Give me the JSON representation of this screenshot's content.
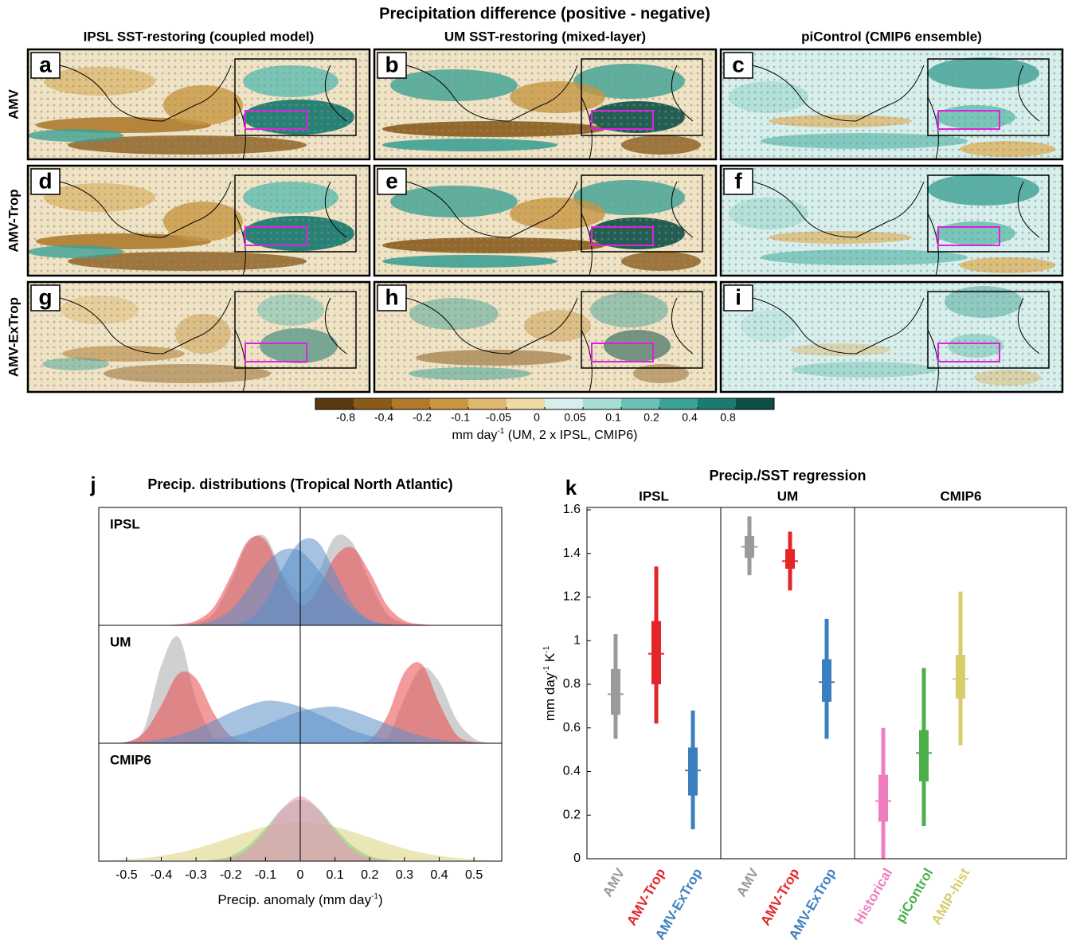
{
  "maps": {
    "title": "Precipitation difference (positive - negative)",
    "column_titles": [
      "IPSL SST-restoring (coupled model)",
      "UM SST-restoring (mixed-layer)",
      "piControl (CMIP6 ensemble)"
    ],
    "row_labels": [
      "AMV",
      "AMV-Trop",
      "AMV-ExTrop"
    ],
    "panel_letters": [
      "a",
      "b",
      "c",
      "d",
      "e",
      "f",
      "g",
      "h",
      "i"
    ],
    "colorbar": {
      "colors": [
        "#5a3a0e",
        "#8a5a1a",
        "#b07a2a",
        "#c9963f",
        "#ddb86e",
        "#efd9a6",
        "#d6efec",
        "#a8ddd5",
        "#6cc1b4",
        "#3aa195",
        "#1b7b70",
        "#0b4f45"
      ],
      "ticks": [
        -0.8,
        -0.4,
        -0.2,
        -0.1,
        -0.05,
        0,
        0.05,
        0.1,
        0.2,
        0.4,
        0.8
      ],
      "label": [
        "mm day",
        "-1",
        " (UM, 2 x IPSL, CMIP6)"
      ]
    }
  },
  "chart_data": [
    {
      "type": "density",
      "panel_letter": "j",
      "title": "Precip. distributions (Tropical North Atlantic)",
      "xlabel": [
        "Precip. anomaly (mm day",
        "-1",
        ")"
      ],
      "xlim": [
        -0.58,
        0.58
      ],
      "xticks": [
        -0.5,
        -0.4,
        -0.3,
        -0.2,
        -0.1,
        0,
        0.1,
        0.2,
        0.3,
        0.4,
        0.5
      ],
      "x": [
        -0.55,
        -0.5,
        -0.45,
        -0.4,
        -0.35,
        -0.3,
        -0.25,
        -0.2,
        -0.15,
        -0.1,
        -0.05,
        0,
        0.05,
        0.1,
        0.15,
        0.2,
        0.25,
        0.3,
        0.35,
        0.4,
        0.45,
        0.5,
        0.55
      ],
      "panels": [
        {
          "label": "IPSL",
          "series": [
            {
              "color": "#a9a9a9",
              "values": [
                0,
                0,
                0,
                0,
                0,
                0.02,
                0.1,
                0.37,
                0.7,
                0.75,
                0.44,
                0.28,
                0.44,
                0.75,
                0.7,
                0.37,
                0.1,
                0.02,
                0,
                0,
                0,
                0,
                0
              ]
            },
            {
              "color": "#e8474a",
              "values": [
                0,
                0,
                0,
                0,
                0.01,
                0.04,
                0.15,
                0.42,
                0.72,
                0.72,
                0.4,
                0.17,
                0.3,
                0.58,
                0.66,
                0.45,
                0.17,
                0.04,
                0.01,
                0,
                0,
                0,
                0
              ]
            },
            {
              "color": "#5b8fc9",
              "values": [
                0,
                0,
                0,
                0,
                0,
                0,
                0,
                0.01,
                0.05,
                0.2,
                0.49,
                0.71,
                0.71,
                0.45,
                0.18,
                0.05,
                0.01,
                0,
                0,
                0,
                0,
                0,
                0
              ]
            },
            {
              "color": "#5b8fc9",
              "values": [
                0,
                0,
                0,
                0,
                0,
                0.01,
                0.04,
                0.13,
                0.31,
                0.52,
                0.64,
                0.63,
                0.48,
                0.28,
                0.13,
                0.04,
                0.01,
                0,
                0,
                0,
                0,
                0,
                0
              ]
            }
          ]
        },
        {
          "label": "UM",
          "series": [
            {
              "color": "#a9a9a9",
              "values": [
                0,
                0.01,
                0.12,
                0.66,
                0.9,
                0.37,
                0.05,
                0,
                0,
                0,
                0,
                0,
                0,
                0,
                0,
                0,
                0.04,
                0.38,
                0.64,
                0.52,
                0.2,
                0.04,
                0
              ]
            },
            {
              "color": "#e8474a",
              "values": [
                0,
                0.01,
                0.09,
                0.32,
                0.59,
                0.55,
                0.26,
                0.06,
                0.01,
                0,
                0,
                0,
                0,
                0,
                0,
                0.03,
                0.23,
                0.6,
                0.67,
                0.34,
                0.07,
                0.01,
                0
              ]
            },
            {
              "color": "#5b8fc9",
              "values": [
                0.003,
                0.007,
                0.017,
                0.037,
                0.071,
                0.12,
                0.19,
                0.26,
                0.32,
                0.36,
                0.35,
                0.31,
                0.25,
                0.18,
                0.11,
                0.063,
                0.032,
                0.015,
                0.006,
                0.002,
                0,
                0,
                0
              ]
            },
            {
              "color": "#5b8fc9",
              "values": [
                0,
                0,
                0,
                0.002,
                0.005,
                0.013,
                0.028,
                0.054,
                0.095,
                0.155,
                0.215,
                0.27,
                0.3,
                0.31,
                0.275,
                0.22,
                0.165,
                0.105,
                0.061,
                0.032,
                0.015,
                0.006,
                0.003
              ]
            }
          ]
        },
        {
          "label": "CMIP6",
          "series": [
            {
              "color": "#d9d27a",
              "values": [
                0.008,
                0.015,
                0.026,
                0.045,
                0.071,
                0.107,
                0.151,
                0.2,
                0.249,
                0.291,
                0.32,
                0.33,
                0.32,
                0.291,
                0.249,
                0.2,
                0.151,
                0.107,
                0.071,
                0.045,
                0.026,
                0.015,
                0.008
              ]
            },
            {
              "color": "#7fc97f",
              "values": [
                0,
                0,
                0,
                0,
                0,
                0.002,
                0.011,
                0.044,
                0.13,
                0.28,
                0.45,
                0.52,
                0.45,
                0.28,
                0.13,
                0.044,
                0.011,
                0.002,
                0,
                0,
                0,
                0,
                0
              ]
            },
            {
              "color": "#f08fc0",
              "values": [
                0,
                0,
                0,
                0,
                0,
                0,
                0.004,
                0.024,
                0.095,
                0.25,
                0.45,
                0.55,
                0.45,
                0.25,
                0.095,
                0.024,
                0.004,
                0,
                0,
                0,
                0,
                0,
                0
              ]
            }
          ]
        }
      ]
    },
    {
      "type": "box",
      "panel_letter": "k",
      "title": "Precip./SST regression",
      "ylabel": [
        "mm day",
        "-1",
        " K",
        "-1"
      ],
      "ylim": [
        0,
        1.6
      ],
      "yticks": [
        0,
        0.2,
        0.4,
        0.6,
        0.8,
        1,
        1.2,
        1.4,
        1.6
      ],
      "groups": [
        {
          "name": "IPSL",
          "items": [
            {
              "label": "AMV",
              "color": "#9a9a9a",
              "low": 0.55,
              "q1": 0.66,
              "median": 0.755,
              "q3": 0.87,
              "high": 1.03
            },
            {
              "label": "AMV-Trop",
              "color": "#e3262a",
              "low": 0.62,
              "q1": 0.8,
              "median": 0.94,
              "q3": 1.09,
              "high": 1.34
            },
            {
              "label": "AMV-ExTrop",
              "color": "#3c7fc0",
              "low": 0.135,
              "q1": 0.29,
              "median": 0.405,
              "q3": 0.51,
              "high": 0.68
            }
          ]
        },
        {
          "name": "UM",
          "items": [
            {
              "label": "AMV",
              "color": "#9a9a9a",
              "low": 1.3,
              "q1": 1.38,
              "median": 1.43,
              "q3": 1.48,
              "high": 1.57
            },
            {
              "label": "AMV-Trop",
              "color": "#e3262a",
              "low": 1.23,
              "q1": 1.33,
              "median": 1.365,
              "q3": 1.42,
              "high": 1.5
            },
            {
              "label": "AMV-ExTrop",
              "color": "#3c7fc0",
              "low": 0.55,
              "q1": 0.72,
              "median": 0.81,
              "q3": 0.915,
              "high": 1.1
            }
          ]
        },
        {
          "name": "CMIP6",
          "items": [
            {
              "label": "Historical",
              "color": "#f07cc0",
              "low": 0,
              "q1": 0.17,
              "median": 0.265,
              "q3": 0.385,
              "high": 0.6
            },
            {
              "label": "piControl",
              "color": "#4caf4a",
              "low": 0.15,
              "q1": 0.355,
              "median": 0.485,
              "q3": 0.59,
              "high": 0.875
            },
            {
              "label": "AMIP-hist",
              "color": "#d8cd6a",
              "low": 0.52,
              "q1": 0.735,
              "median": 0.825,
              "q3": 0.935,
              "high": 1.225
            }
          ]
        }
      ]
    }
  ]
}
